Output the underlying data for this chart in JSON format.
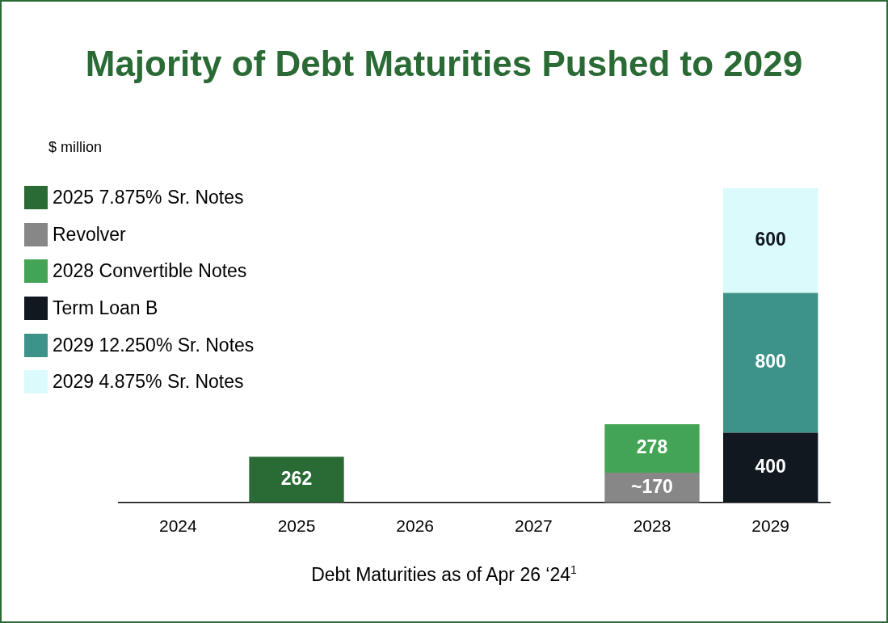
{
  "chart_data": {
    "type": "bar",
    "title": "Majority of Debt Maturities Pushed to 2029",
    "ylabel": "$ million",
    "xlabel": "Debt Maturities as of Apr 26 ‘24$^{1}$",
    "categories": [
      "2024",
      "2025",
      "2026",
      "2027",
      "2028",
      "2029"
    ],
    "stacked": true,
    "legend": "top left",
    "grid": false,
    "series": [
      {
        "name": "2025 7.875% Sr. Notes",
        "color": "#2a6a35",
        "values": [
          null,
          262,
          null,
          null,
          null,
          null
        ],
        "value_labels": [
          null,
          "262",
          null,
          null,
          null,
          null
        ]
      },
      {
        "name": "Revolver",
        "color": "#878787",
        "values": [
          null,
          null,
          null,
          null,
          170,
          null
        ],
        "value_labels": [
          null,
          null,
          null,
          null,
          "~170",
          null
        ]
      },
      {
        "name": "2028 Convertible Notes",
        "color": "#44a455",
        "values": [
          null,
          null,
          null,
          null,
          278,
          null
        ],
        "value_labels": [
          null,
          null,
          null,
          null,
          "278",
          null
        ]
      },
      {
        "name": "Term Loan B",
        "color": "#111820",
        "values": [
          null,
          null,
          null,
          null,
          null,
          400
        ],
        "value_labels": [
          null,
          null,
          null,
          null,
          null,
          "400"
        ]
      },
      {
        "name": "2029 12.250% Sr. Notes",
        "color": "#3d9389",
        "values": [
          null,
          null,
          null,
          null,
          null,
          800
        ],
        "value_labels": [
          null,
          null,
          null,
          null,
          null,
          "800"
        ]
      },
      {
        "name": "2029 4.875% Sr. Notes",
        "color": "#dbfafc",
        "values": [
          null,
          null,
          null,
          null,
          null,
          600
        ],
        "value_labels": [
          null,
          null,
          null,
          null,
          null,
          "600"
        ]
      }
    ]
  }
}
